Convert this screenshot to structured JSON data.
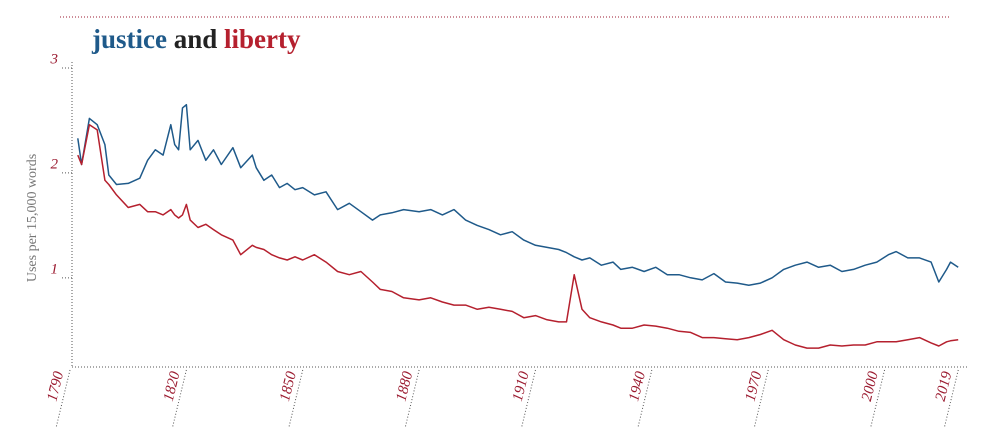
{
  "chart_data": {
    "type": "line",
    "title": [
      "justice",
      "and",
      "liberty"
    ],
    "y_label": "Uses per 15,000 words",
    "x": [
      1792,
      1793,
      1795,
      1797,
      1799,
      1800,
      1802,
      1805,
      1808,
      1810,
      1812,
      1814,
      1816,
      1817,
      1818,
      1819,
      1820,
      1821,
      1823,
      1825,
      1827,
      1829,
      1832,
      1834,
      1837,
      1838,
      1840,
      1842,
      1844,
      1846,
      1848,
      1850,
      1853,
      1856,
      1859,
      1862,
      1865,
      1868,
      1870,
      1873,
      1876,
      1880,
      1883,
      1886,
      1889,
      1892,
      1895,
      1898,
      1901,
      1904,
      1907,
      1910,
      1913,
      1916,
      1918,
      1920,
      1922,
      1924,
      1927,
      1930,
      1932,
      1935,
      1938,
      1941,
      1944,
      1947,
      1950,
      1953,
      1956,
      1959,
      1962,
      1965,
      1968,
      1971,
      1974,
      1977,
      1980,
      1983,
      1986,
      1989,
      1992,
      1995,
      1998,
      2001,
      2003,
      2006,
      2009,
      2012,
      2014,
      2016,
      2017,
      2019
    ],
    "series": [
      {
        "name": "justice",
        "color": "#1f5a8a",
        "values": [
          2.33,
          2.08,
          2.52,
          2.46,
          2.27,
          1.98,
          1.89,
          1.9,
          1.95,
          2.12,
          2.22,
          2.17,
          2.46,
          2.27,
          2.22,
          2.62,
          2.65,
          2.22,
          2.31,
          2.12,
          2.22,
          2.08,
          2.24,
          2.05,
          2.17,
          2.05,
          1.93,
          1.98,
          1.86,
          1.9,
          1.84,
          1.86,
          1.79,
          1.82,
          1.65,
          1.71,
          1.63,
          1.55,
          1.6,
          1.62,
          1.65,
          1.63,
          1.65,
          1.6,
          1.65,
          1.55,
          1.5,
          1.46,
          1.41,
          1.44,
          1.36,
          1.31,
          1.29,
          1.27,
          1.24,
          1.2,
          1.17,
          1.19,
          1.12,
          1.15,
          1.08,
          1.1,
          1.06,
          1.1,
          1.03,
          1.03,
          1.0,
          0.98,
          1.04,
          0.96,
          0.95,
          0.93,
          0.95,
          1.0,
          1.08,
          1.12,
          1.15,
          1.1,
          1.12,
          1.06,
          1.08,
          1.12,
          1.15,
          1.22,
          1.25,
          1.19,
          1.19,
          1.15,
          0.96,
          1.08,
          1.15,
          1.1
        ]
      },
      {
        "name": "liberty",
        "color": "#b5202e",
        "values": [
          2.17,
          2.08,
          2.46,
          2.41,
          1.93,
          1.89,
          1.79,
          1.67,
          1.7,
          1.63,
          1.63,
          1.6,
          1.65,
          1.6,
          1.57,
          1.6,
          1.7,
          1.55,
          1.48,
          1.51,
          1.46,
          1.41,
          1.36,
          1.22,
          1.31,
          1.29,
          1.27,
          1.22,
          1.19,
          1.17,
          1.2,
          1.17,
          1.22,
          1.15,
          1.06,
          1.03,
          1.06,
          0.96,
          0.89,
          0.87,
          0.81,
          0.79,
          0.81,
          0.77,
          0.74,
          0.74,
          0.7,
          0.72,
          0.7,
          0.68,
          0.62,
          0.64,
          0.6,
          0.58,
          0.58,
          1.03,
          0.7,
          0.62,
          0.58,
          0.55,
          0.52,
          0.52,
          0.55,
          0.54,
          0.52,
          0.49,
          0.48,
          0.43,
          0.43,
          0.42,
          0.41,
          0.43,
          0.46,
          0.5,
          0.41,
          0.36,
          0.33,
          0.33,
          0.36,
          0.35,
          0.36,
          0.36,
          0.39,
          0.39,
          0.39,
          0.41,
          0.43,
          0.38,
          0.35,
          0.39,
          0.4,
          0.41
        ]
      }
    ],
    "xlim": [
      1790,
      2021
    ],
    "xticks": [
      1790,
      1820,
      1850,
      1880,
      1910,
      1940,
      1970,
      2000,
      2019
    ],
    "ylim": [
      0.15,
      3
    ],
    "yticks": [
      1,
      2,
      3
    ]
  }
}
